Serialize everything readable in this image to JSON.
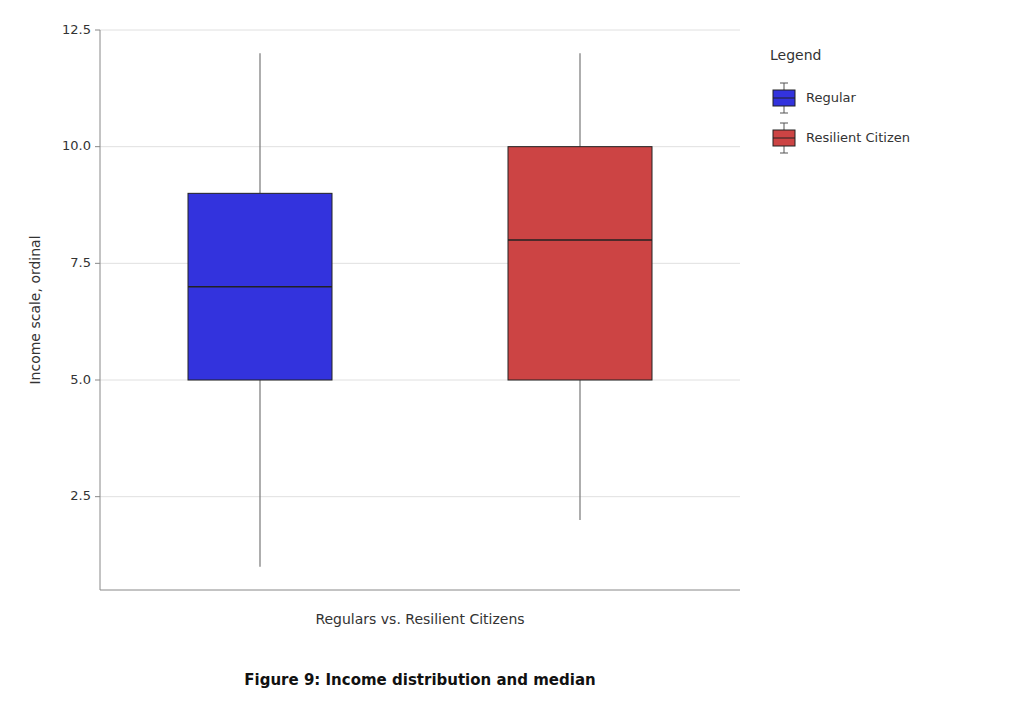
{
  "chart_data": {
    "type": "box",
    "title": "Figure 9: Income distribution and median",
    "x_label": "Regulars vs. Resilient Citizens",
    "y_label": "Income scale, ordinal",
    "ylim": [
      0.5,
      12.5
    ],
    "yticks": [
      2.5,
      {
        "value": 5.0,
        "label": "5.0"
      },
      7.5,
      {
        "value": 10.0,
        "label": "10.0"
      },
      12.5
    ],
    "grid": true,
    "tick_labels": "y",
    "legend": "right",
    "legend_title": "Legend",
    "series": [
      {
        "name": "Regular",
        "color": "#3333dd",
        "q1": 5.0,
        "median": 7.0,
        "q3": 9.0,
        "whisker_low": 1.0,
        "whisker_high": 12.0
      },
      {
        "name": "Resilient Citizen",
        "color": "#cc4444",
        "q1": 5.0,
        "median": 8.0,
        "q3": 10.0,
        "whisker_low": 2.0,
        "whisker_high": 12.0
      }
    ]
  }
}
